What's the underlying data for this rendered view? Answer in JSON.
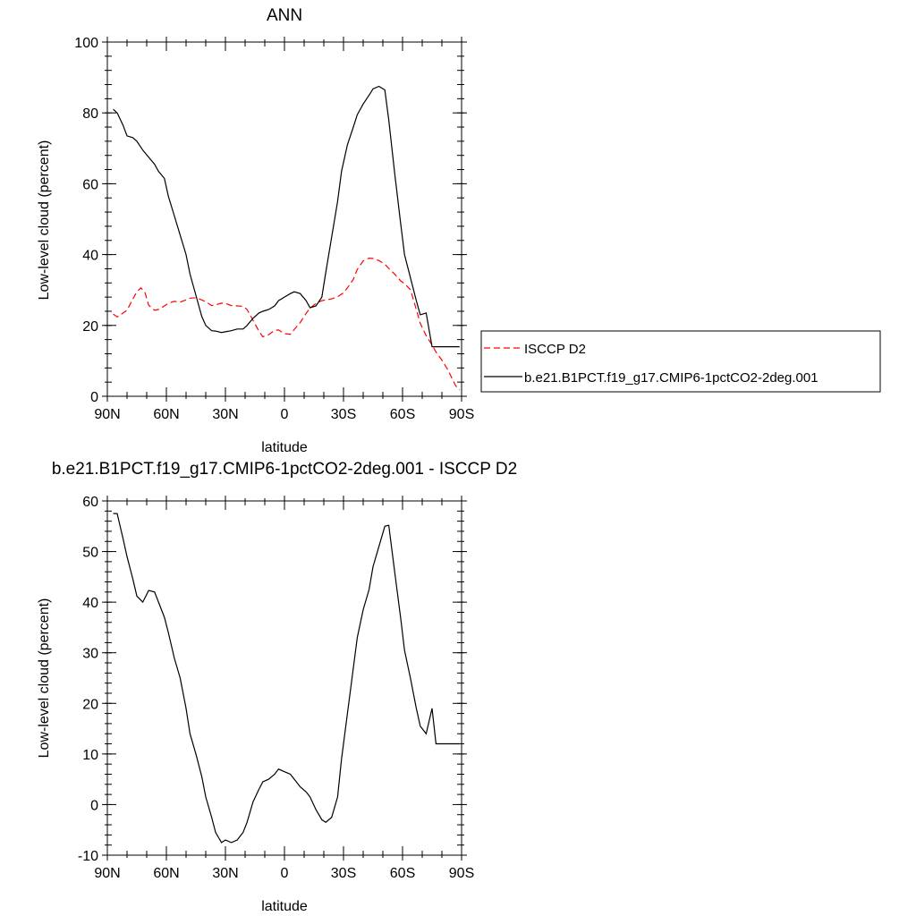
{
  "chart_data": [
    {
      "type": "line",
      "title": "ANN",
      "xlabel": "latitude",
      "ylabel": "Low-level cloud (percent)",
      "xlim": [
        90,
        -90
      ],
      "ylim": [
        0,
        100
      ],
      "x_ticks": [
        90,
        60,
        30,
        0,
        -30,
        -60,
        -90
      ],
      "x_tick_labels": [
        "90N",
        "60N",
        "30N",
        "0",
        "30S",
        "60S",
        "90S"
      ],
      "y_ticks": [
        0,
        20,
        40,
        60,
        80,
        100
      ],
      "y_tick_labels": [
        "0",
        "20",
        "40",
        "60",
        "80",
        "100"
      ],
      "legend_position": "right",
      "series": [
        {
          "name": "ISCCP D2",
          "color": "#ff0000",
          "style": "dashed",
          "x": [
            87,
            85,
            82,
            80,
            77,
            75,
            73,
            71,
            69,
            66,
            64,
            61,
            59,
            56,
            53,
            51,
            48,
            45,
            42,
            40,
            37,
            35,
            32,
            30,
            27,
            24,
            21,
            19,
            16,
            13,
            11,
            8,
            5,
            3,
            0,
            -3,
            -5,
            -8,
            -11,
            -13,
            -16,
            -19,
            -21,
            -24,
            -27,
            -30,
            -32,
            -35,
            -37,
            -40,
            -43,
            -45,
            -48,
            -51,
            -53,
            -56,
            -59,
            -61,
            -64,
            -67,
            -69,
            -72,
            -75,
            -77,
            -80,
            -83,
            -85,
            -87,
            -89
          ],
          "values": [
            23.2,
            22.4,
            23.5,
            24.3,
            27.5,
            29.5,
            30.6,
            29.5,
            25.7,
            24.3,
            24.5,
            25.5,
            26.3,
            26.8,
            26.6,
            27.0,
            27.7,
            27.8,
            27.2,
            26.7,
            25.6,
            25.8,
            26.3,
            26.2,
            25.6,
            25.5,
            25.4,
            24.5,
            21.5,
            18.4,
            16.8,
            17.4,
            18.6,
            18.7,
            17.7,
            17.5,
            18.9,
            20.8,
            23.4,
            24.9,
            26.2,
            27.0,
            27.2,
            27.5,
            28.1,
            29.2,
            30.6,
            33.0,
            35.8,
            38.2,
            39.0,
            38.9,
            38.3,
            37.3,
            36.1,
            34.5,
            32.6,
            31.8,
            30.1,
            24.5,
            20.6,
            17.1,
            14.5,
            12.5,
            10.2,
            7.5,
            5.2,
            3.0,
            1.8
          ]
        },
        {
          "name": "b.e21.B1PCT.f19_g17.CMIP6-1pctCO2-2deg.001",
          "color": "#000000",
          "style": "solid",
          "x": [
            87,
            85,
            82,
            80,
            77,
            75,
            72,
            69,
            66,
            64,
            61,
            59,
            56,
            53,
            50,
            48,
            45,
            42,
            40,
            37,
            35,
            32,
            30,
            27,
            24,
            21,
            19,
            16,
            13,
            11,
            8,
            5,
            3,
            0,
            -3,
            -5,
            -8,
            -11,
            -13,
            -16,
            -19,
            -21,
            -24,
            -27,
            -29,
            -32,
            -35,
            -37,
            -40,
            -43,
            -45,
            -48,
            -51,
            -53,
            -56,
            -59,
            -61,
            -64,
            -67,
            -69,
            -72,
            -75,
            -77,
            -80,
            -83,
            -85,
            -87,
            -89
          ],
          "values": [
            81.0,
            80.0,
            76.5,
            73.5,
            73.0,
            72.0,
            69.5,
            67.5,
            65.5,
            63.5,
            61.5,
            56.5,
            51.0,
            45.5,
            40.0,
            34.5,
            28.5,
            22.5,
            20.0,
            18.5,
            18.4,
            18.0,
            18.2,
            18.5,
            19.0,
            19.0,
            20.0,
            22.0,
            23.5,
            24.0,
            24.5,
            25.5,
            27.0,
            28.0,
            29.0,
            29.5,
            29.0,
            27.0,
            25.0,
            25.5,
            28.0,
            35.0,
            45.0,
            55.0,
            63.5,
            71.0,
            76.0,
            79.5,
            82.5,
            85.0,
            86.8,
            87.5,
            86.5,
            78.0,
            63.0,
            49.0,
            40.0,
            33.5,
            27.0,
            23.0,
            23.5,
            14.0,
            14.0,
            14.0,
            14.0,
            14.0,
            14.0,
            14.0
          ]
        }
      ]
    },
    {
      "type": "line",
      "title": "b.e21.B1PCT.f19_g17.CMIP6-1pctCO2-2deg.001 - ISCCP D2",
      "xlabel": "latitude",
      "ylabel": "Low-level cloud (percent)",
      "xlim": [
        90,
        -90
      ],
      "ylim": [
        -10,
        60
      ],
      "x_ticks": [
        90,
        60,
        30,
        0,
        -30,
        -60,
        -90
      ],
      "x_tick_labels": [
        "90N",
        "60N",
        "30N",
        "0",
        "30S",
        "60S",
        "90S"
      ],
      "y_ticks": [
        -10,
        0,
        10,
        20,
        30,
        40,
        50,
        60
      ],
      "y_tick_labels": [
        "-10",
        "0",
        "10",
        "20",
        "30",
        "40",
        "50",
        "60"
      ],
      "series": [
        {
          "color": "#000000",
          "style": "solid",
          "x": [
            87,
            85,
            82,
            80,
            77,
            75,
            72,
            69,
            66,
            64,
            61,
            59,
            56,
            53,
            50,
            48,
            45,
            42,
            40,
            37,
            35,
            32,
            30,
            27,
            24,
            21,
            19,
            16,
            13,
            11,
            8,
            5,
            3,
            0,
            -3,
            -5,
            -8,
            -11,
            -13,
            -16,
            -19,
            -21,
            -24,
            -27,
            -29,
            -32,
            -35,
            -37,
            -40,
            -43,
            -45,
            -48,
            -51,
            -53,
            -56,
            -59,
            -61,
            -64,
            -67,
            -69,
            -72,
            -75,
            -77,
            -80,
            -83,
            -85,
            -87,
            -89
          ],
          "values": [
            57.5,
            57.5,
            52.5,
            49.0,
            44.5,
            41.2,
            40.0,
            42.3,
            42.0,
            40.0,
            37.0,
            34.0,
            29.0,
            25.0,
            19.0,
            14.0,
            10.0,
            5.5,
            1.5,
            -2.5,
            -5.5,
            -7.5,
            -7.0,
            -7.5,
            -7.0,
            -5.5,
            -3.5,
            0.5,
            3.0,
            4.5,
            5.0,
            6.0,
            7.0,
            6.5,
            6.0,
            5.0,
            3.5,
            2.5,
            1.5,
            -1.0,
            -3.0,
            -3.5,
            -2.5,
            1.5,
            9.0,
            18.0,
            27.0,
            33.0,
            38.5,
            42.5,
            47.0,
            51.0,
            55.0,
            55.2,
            46.0,
            37.0,
            30.5,
            25.0,
            19.0,
            15.5,
            14.0,
            19.0,
            12.0,
            12.0,
            12.0,
            12.0,
            12.0,
            12.0
          ]
        }
      ]
    }
  ]
}
